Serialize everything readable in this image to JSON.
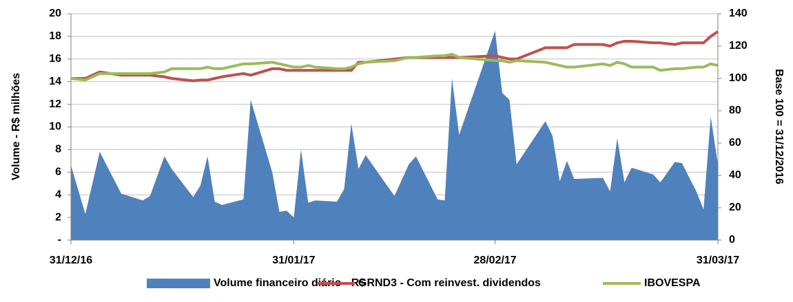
{
  "chart_data": {
    "type": "combo",
    "x": [
      "31/12/16",
      "02/01/17",
      "04/01/17",
      "07/01/17",
      "10/01/17",
      "11/01/17",
      "13/01/17",
      "14/01/17",
      "17/01/17",
      "18/01/17",
      "19/01/17",
      "20/01/17",
      "21/01/17",
      "24/01/17",
      "25/01/17",
      "28/01/17",
      "29/01/17",
      "30/01/17",
      "31/01/17",
      "01/02/17",
      "02/02/17",
      "03/02/17",
      "06/02/17",
      "07/02/17",
      "08/02/17",
      "09/02/17",
      "10/02/17",
      "14/02/17",
      "16/02/17",
      "17/02/17",
      "20/02/17",
      "21/02/17",
      "22/02/17",
      "23/02/17",
      "28/02/17",
      "01/03/17",
      "02/03/17",
      "03/03/17",
      "07/03/17",
      "08/03/17",
      "09/03/17",
      "10/03/17",
      "11/03/17",
      "15/03/17",
      "16/03/17",
      "17/03/17",
      "18/03/17",
      "19/03/17",
      "22/03/17",
      "23/03/17",
      "25/03/17",
      "26/03/17",
      "28/03/17",
      "29/03/17",
      "30/03/17",
      "31/03/17"
    ],
    "xlim": [
      "31/12/16",
      "31/03/17"
    ],
    "xticks": [
      "31/12/16",
      "31/01/17",
      "28/02/17",
      "31/03/17"
    ],
    "ylabel": "Volume - R$ milhões",
    "y2label": "Base 100 = 31/12/2016",
    "ylim": [
      0,
      20
    ],
    "yticks": [
      {
        "value": 0,
        "label": "-"
      },
      2,
      4,
      6,
      8,
      10,
      12,
      14,
      16,
      18,
      20
    ],
    "y2lim": [
      0,
      140
    ],
    "y2ticks": [
      0,
      20,
      40,
      60,
      80,
      100,
      120,
      140
    ],
    "grid": true,
    "series": [
      {
        "name": "Volume financeiro diário - R$",
        "type": "area",
        "color": "#4f81bd",
        "values": [
          6.6,
          2.3,
          7.8,
          4.1,
          3.5,
          3.9,
          7.4,
          6.3,
          3.8,
          4.8,
          7.4,
          3.4,
          3.1,
          3.6,
          12.4,
          6.0,
          2.5,
          2.6,
          2.0,
          8.0,
          3.3,
          3.5,
          3.4,
          4.5,
          10.3,
          6.3,
          7.5,
          3.9,
          6.7,
          7.4,
          3.6,
          3.5,
          14.3,
          9.3,
          18.5,
          13.0,
          12.4,
          6.7,
          10.5,
          9.2,
          5.2,
          7.0,
          5.4,
          5.5,
          4.3,
          9.0,
          5.1,
          6.4,
          5.8,
          5.1,
          6.9,
          6.8,
          4.3,
          2.7,
          10.9,
          6.7
        ]
      },
      {
        "name": "GRND3 - Com reinvest. dividendos",
        "type": "line",
        "axis": "y2",
        "color": "#c0504d",
        "values": [
          100,
          100,
          104,
          102,
          102,
          102,
          101,
          100,
          98.5,
          99,
          99,
          100,
          101,
          103,
          102,
          106,
          106,
          105,
          105,
          105,
          105,
          105,
          105,
          105,
          105,
          110,
          110,
          112,
          113,
          113,
          113,
          113,
          113,
          113,
          114,
          113,
          112,
          112,
          119,
          119,
          119,
          119,
          121,
          121,
          120,
          122,
          123,
          123,
          122,
          122,
          121,
          122,
          122,
          122,
          126,
          129
        ]
      },
      {
        "name": "IBOVESPA",
        "type": "line",
        "axis": "y2",
        "color": "#9bbb59",
        "values": [
          100,
          99,
          103,
          103,
          103,
          103,
          104,
          106,
          106,
          106,
          107,
          106,
          106,
          109,
          109,
          110,
          109,
          108,
          107,
          107,
          108,
          107,
          106,
          106,
          107,
          109,
          110,
          111,
          113,
          113,
          114,
          114,
          115,
          113,
          111,
          111,
          110,
          111,
          110,
          109,
          108,
          107,
          107,
          109,
          108,
          110,
          109,
          107,
          107,
          105,
          106,
          106,
          107,
          107,
          109,
          108
        ]
      }
    ]
  }
}
